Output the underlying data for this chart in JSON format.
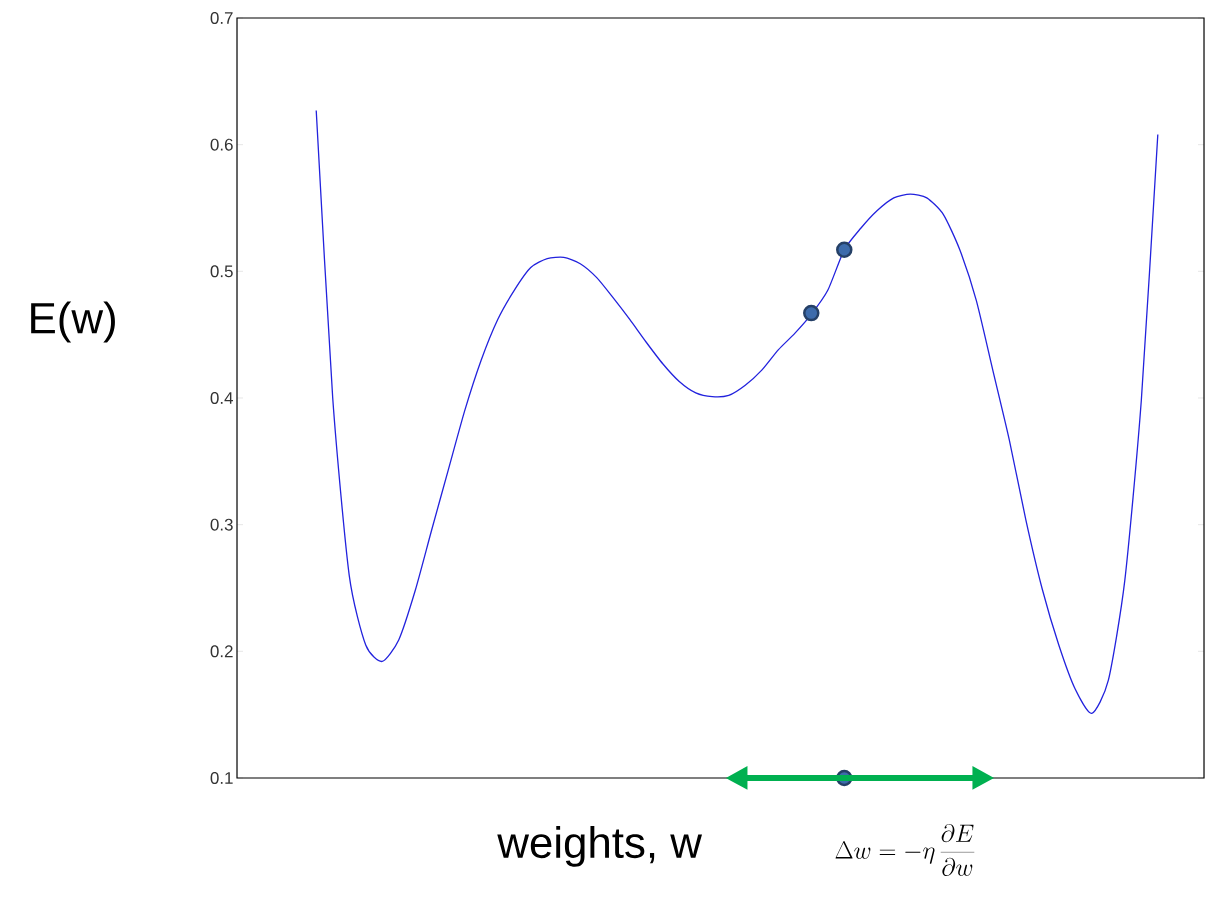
{
  "chart_data": {
    "type": "line",
    "xlabel": "weights, w",
    "ylabel": "E(w)",
    "annotations": [
      "\\Delta w = -\\eta \\, \\frac{\\partial E}{\\partial w}"
    ],
    "categories": [
      null,
      null,
      null,
      null,
      null,
      null,
      null,
      null,
      null,
      null,
      null,
      null,
      null,
      null,
      null,
      null,
      null,
      null,
      null,
      null,
      null,
      null,
      null,
      null,
      null,
      null,
      null,
      null,
      null,
      null,
      null,
      null,
      null,
      null,
      null,
      null,
      null,
      null,
      null,
      null,
      null,
      null,
      null,
      null,
      null,
      null,
      null,
      null,
      null,
      null,
      null,
      null
    ],
    "series": [
      {
        "color": "#2222dd",
        "values": [
          0.627,
          0.4,
          0.26,
          0.205,
          0.192,
          0.209,
          0.248,
          0.296,
          0.343,
          0.39,
          0.43,
          0.462,
          0.485,
          0.503,
          0.51,
          0.511,
          0.506,
          0.495,
          0.479,
          0.462,
          0.444,
          0.427,
          0.413,
          0.404,
          0.401,
          0.402,
          0.41,
          0.422,
          0.438,
          0.451,
          0.466,
          0.485,
          0.517,
          0.534,
          0.548,
          0.558,
          0.561,
          0.558,
          0.545,
          0.517,
          0.477,
          0.422,
          0.367,
          0.304,
          0.249,
          0.205,
          0.17,
          0.151,
          0.177,
          0.256,
          0.398,
          0.608
        ]
      },
      {
        "type": "scatter",
        "marker": "circle",
        "color": "#3d6bab",
        "values": [
          null,
          null,
          null,
          null,
          null,
          null,
          null,
          null,
          null,
          null,
          null,
          null,
          null,
          null,
          null,
          null,
          null,
          null,
          null,
          null,
          null,
          null,
          null,
          null,
          null,
          null,
          null,
          null,
          null,
          null,
          0.467,
          null,
          0.517,
          null,
          null,
          null,
          null,
          null,
          null,
          null,
          null,
          null,
          null,
          null,
          null,
          null,
          null,
          null,
          null,
          null,
          null,
          null
        ]
      },
      {
        "type": "scatter",
        "marker": "circle",
        "color": "#3d6bab",
        "values": [
          null,
          null,
          null,
          null,
          null,
          null,
          null,
          null,
          null,
          null,
          null,
          null,
          null,
          null,
          null,
          null,
          null,
          null,
          null,
          null,
          null,
          null,
          null,
          null,
          null,
          null,
          null,
          null,
          null,
          null,
          null,
          null,
          0.1,
          null,
          null,
          null,
          null,
          null,
          null,
          null,
          null,
          null,
          null,
          null,
          null,
          null,
          null,
          null,
          null,
          null,
          null,
          null
        ]
      }
    ],
    "ylim": [
      0.1,
      0.7
    ],
    "yticks": [
      0.1,
      0.2,
      0.3,
      0.4,
      0.5,
      0.6,
      0.7
    ],
    "tick_labels": "y"
  }
}
